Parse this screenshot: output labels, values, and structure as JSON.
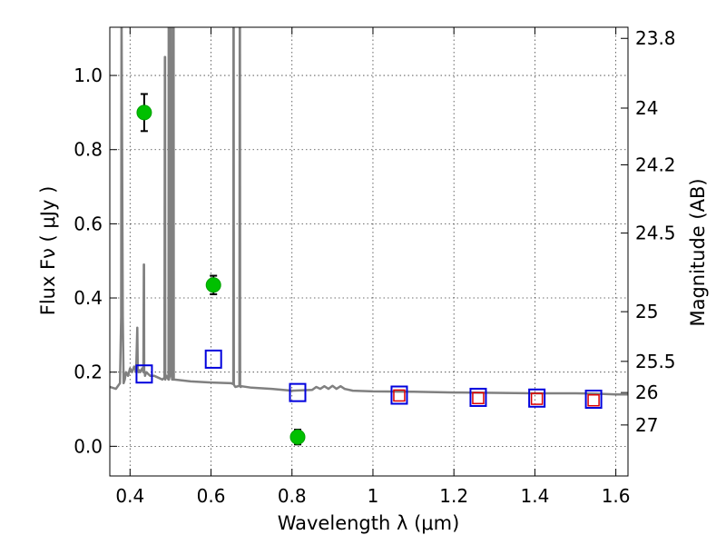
{
  "chart_data": {
    "type": "scatter",
    "xlabel": "Wavelength  λ (μm)",
    "ylabel": "Flux  Fν  ( μJy )",
    "ylabel_right": "Magnitude (AB)",
    "xlim": [
      0.35,
      1.63
    ],
    "ylim": [
      -0.08,
      1.13
    ],
    "grid": true,
    "x_ticks": [
      0.4,
      0.6,
      0.8,
      1.0,
      1.2,
      1.4,
      1.6
    ],
    "x_tick_labels": [
      "0.4",
      "0.6",
      "0.8",
      "1",
      "1.2",
      "1.4",
      "1.6"
    ],
    "y_ticks": [
      0.0,
      0.2,
      0.4,
      0.6,
      0.8,
      1.0
    ],
    "y_tick_labels": [
      "0.0",
      "0.2",
      "0.4",
      "0.6",
      "0.8",
      "1.0"
    ],
    "right_ticks": [
      {
        "label": "23.8",
        "flux": 1.1
      },
      {
        "label": "24",
        "flux": 0.912
      },
      {
        "label": "24.2",
        "flux": 0.759
      },
      {
        "label": "24.5",
        "flux": 0.575
      },
      {
        "label": "25",
        "flux": 0.363
      },
      {
        "label": "25.5",
        "flux": 0.229
      },
      {
        "label": "26",
        "flux": 0.145
      },
      {
        "label": "27",
        "flux": 0.0575
      }
    ],
    "series": [
      {
        "kind": "model-spectrum",
        "color": "#808080",
        "x": [
          0.35,
          0.365,
          0.375,
          0.378,
          0.379,
          0.382,
          0.384,
          0.387,
          0.39,
          0.395,
          0.4,
          0.405,
          0.41,
          0.415,
          0.418,
          0.419,
          0.421,
          0.423,
          0.425,
          0.43,
          0.433,
          0.434,
          0.4345,
          0.435,
          0.436,
          0.437,
          0.44,
          0.45,
          0.46,
          0.47,
          0.48,
          0.485,
          0.486,
          0.4865,
          0.487,
          0.488,
          0.49,
          0.495,
          0.4955,
          0.4958,
          0.496,
          0.5,
          0.5005,
          0.501,
          0.502,
          0.504,
          0.506,
          0.5065,
          0.507,
          0.5075,
          0.508,
          0.51,
          0.55,
          0.6,
          0.65,
          0.655,
          0.6555,
          0.656,
          0.6565,
          0.657,
          0.66,
          0.67,
          0.671,
          0.6715,
          0.672,
          0.673,
          0.674,
          0.675,
          0.7,
          0.75,
          0.8,
          0.85,
          0.86,
          0.87,
          0.88,
          0.89,
          0.9,
          0.91,
          0.92,
          0.93,
          0.95,
          1.0,
          1.1,
          1.2,
          1.3,
          1.4,
          1.5,
          1.55,
          1.6,
          1.63
        ],
        "y": [
          0.16,
          0.155,
          0.17,
          0.35,
          1.2,
          0.35,
          0.17,
          0.18,
          0.2,
          0.19,
          0.21,
          0.2,
          0.215,
          0.2,
          0.32,
          0.21,
          0.2,
          0.205,
          0.2,
          0.21,
          0.2,
          0.49,
          0.49,
          0.2,
          0.2,
          0.19,
          0.2,
          0.19,
          0.19,
          0.185,
          0.18,
          0.185,
          1.05,
          1.05,
          0.18,
          0.185,
          0.19,
          0.18,
          1.2,
          1.2,
          0.18,
          0.2,
          1.2,
          1.2,
          0.2,
          0.18,
          0.185,
          0.18,
          1.2,
          1.2,
          0.18,
          0.18,
          0.175,
          0.172,
          0.17,
          0.168,
          1.2,
          1.2,
          0.168,
          0.165,
          0.16,
          0.163,
          1.2,
          1.2,
          0.163,
          0.16,
          0.16,
          0.162,
          0.158,
          0.155,
          0.15,
          0.152,
          0.16,
          0.155,
          0.162,
          0.155,
          0.163,
          0.155,
          0.162,
          0.155,
          0.15,
          0.148,
          0.147,
          0.145,
          0.144,
          0.143,
          0.143,
          0.142,
          0.14,
          0.14
        ]
      },
      {
        "kind": "observed",
        "color": "#00c000",
        "points": [
          {
            "x": 0.435,
            "y": 0.9,
            "err": 0.05
          },
          {
            "x": 0.606,
            "y": 0.435,
            "err": 0.025
          },
          {
            "x": 0.814,
            "y": 0.025,
            "err": 0.02
          }
        ]
      },
      {
        "kind": "model-blue-squares",
        "color": "#0000dd",
        "points": [
          {
            "x": 0.435,
            "y": 0.195
          },
          {
            "x": 0.606,
            "y": 0.235
          },
          {
            "x": 0.814,
            "y": 0.145
          },
          {
            "x": 1.065,
            "y": 0.138
          },
          {
            "x": 1.26,
            "y": 0.132
          },
          {
            "x": 1.405,
            "y": 0.13
          },
          {
            "x": 1.545,
            "y": 0.127
          }
        ]
      },
      {
        "kind": "model-red-squares",
        "color": "#dd0000",
        "points": [
          {
            "x": 1.065,
            "y": 0.137
          },
          {
            "x": 1.26,
            "y": 0.13
          },
          {
            "x": 1.405,
            "y": 0.128
          },
          {
            "x": 1.545,
            "y": 0.124
          }
        ]
      }
    ]
  }
}
